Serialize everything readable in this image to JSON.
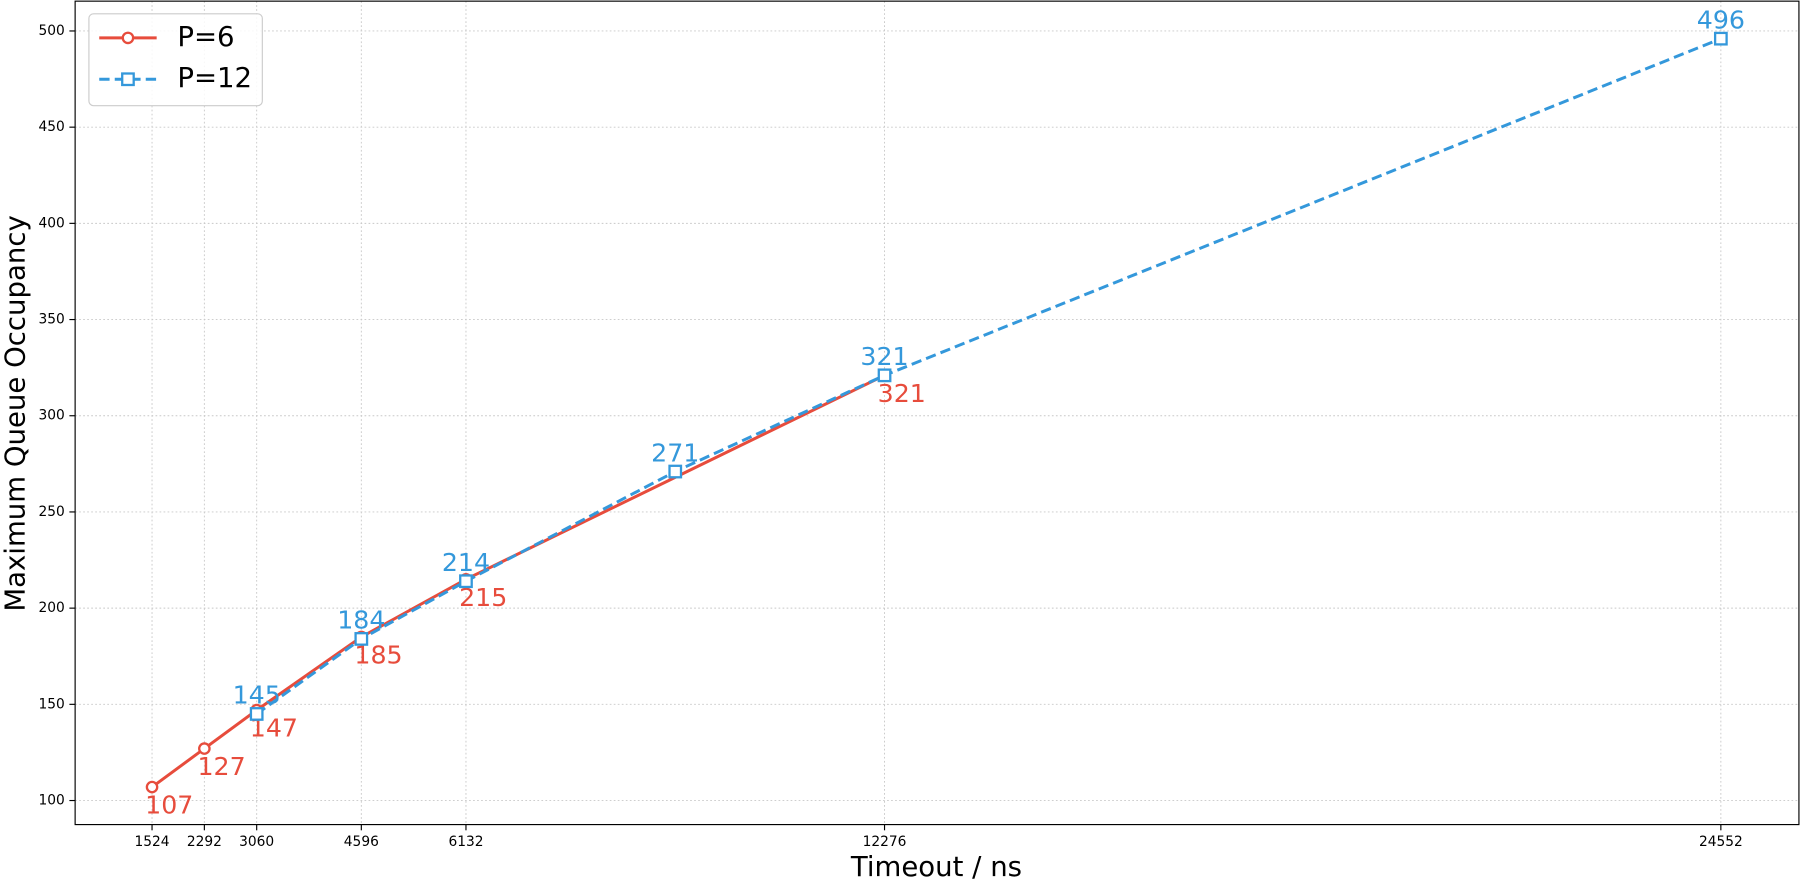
{
  "chart_data": {
    "type": "line",
    "xlabel": "Timeout / ns",
    "ylabel": "Maximum Queue Occupancy",
    "series": [
      {
        "name": "P=6",
        "color": "#e74c3c",
        "marker": "o",
        "linestyle": "solid",
        "x": [
          1524,
          2292,
          3060,
          4596,
          6132,
          12276
        ],
        "values": [
          107,
          127,
          147,
          185,
          215,
          321
        ]
      },
      {
        "name": "P=12",
        "color": "#3498db",
        "marker": "s",
        "linestyle": "dashed",
        "x": [
          3060,
          4596,
          6132,
          9204,
          12276,
          24552
        ],
        "values": [
          145,
          184,
          214,
          271,
          321,
          496
        ]
      }
    ],
    "xlim": [
      395,
      25698
    ],
    "ylim": [
      87.5,
      515.5
    ],
    "xticks": [
      1524,
      2292,
      3060,
      4596,
      6132,
      12276,
      24552
    ],
    "yticks": [
      100,
      150,
      200,
      250,
      300,
      350,
      400,
      450,
      500
    ],
    "grid": true,
    "legend": "upper left"
  }
}
